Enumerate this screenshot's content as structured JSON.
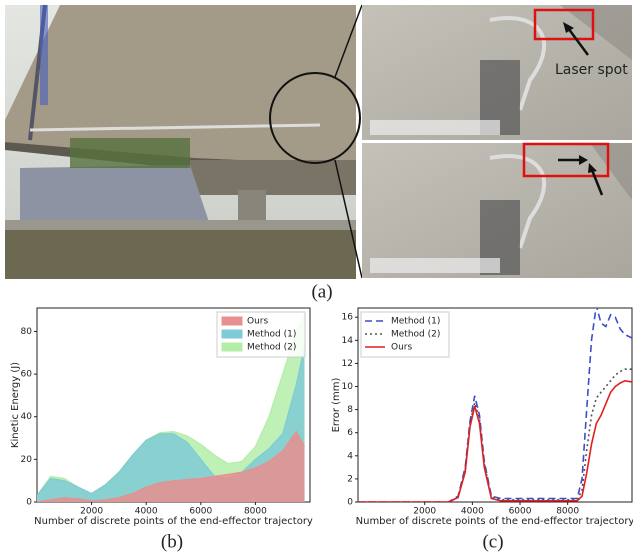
{
  "figure": {
    "panel_a_label": "(a)",
    "panel_b_label": "(b)",
    "panel_c_label": "(c)",
    "annotation": "Laser spot"
  },
  "chart_data": [
    {
      "type": "area",
      "xlabel": "Number of discrete points of the end-effector trajectory",
      "ylabel": "Kinetic Energy (J)",
      "x": [
        0,
        500,
        1000,
        1500,
        2000,
        2500,
        3000,
        3500,
        4000,
        4500,
        5000,
        5500,
        6000,
        6500,
        7000,
        7500,
        8000,
        8500,
        9000,
        9500,
        9800
      ],
      "series": [
        {
          "name": "Ours",
          "color": "#e88f8f",
          "values": [
            0,
            1,
            2,
            1.5,
            0.5,
            1,
            2,
            4,
            7,
            9,
            10,
            10.5,
            11,
            12,
            13,
            14,
            16,
            19,
            24,
            33,
            26
          ]
        },
        {
          "name": "Method (1)",
          "color": "#7fcbd6",
          "values": [
            3,
            11,
            10,
            7,
            4,
            8,
            14,
            22,
            29,
            32,
            32,
            28,
            20,
            12,
            11,
            14,
            20,
            25,
            32,
            55,
            73
          ]
        },
        {
          "name": "Method (2)",
          "color": "#b4eda8",
          "values": [
            3,
            12,
            11,
            7,
            4,
            8,
            14,
            22,
            29,
            32.5,
            33,
            31,
            27,
            22,
            18,
            19,
            26,
            40,
            60,
            80,
            88
          ]
        }
      ],
      "xlim": [
        0,
        10000
      ],
      "xticks": [
        2000,
        4000,
        6000,
        8000
      ],
      "ylim": [
        0,
        91
      ],
      "yticks": [
        0,
        20,
        40,
        60,
        80
      ],
      "legend": "upper right"
    },
    {
      "type": "line",
      "xlabel": "Number of discrete points of the end-effector trajectory",
      "ylabel": "Error (mm)",
      "x": [
        -800,
        3000,
        3400,
        3700,
        3900,
        4100,
        4300,
        4500,
        4800,
        5200,
        8400,
        8600,
        8800,
        9000,
        9200,
        9400,
        9600,
        9800,
        10000,
        10200,
        10400,
        10700
      ],
      "series": [
        {
          "name": "Method (1)",
          "color": "#3a4fc9",
          "dash": "dashed",
          "values": [
            0,
            0,
            0.5,
            3,
            7,
            9.2,
            7.5,
            3.5,
            0.5,
            0.3,
            0.3,
            2,
            8,
            14,
            17,
            15.5,
            15.2,
            16.2,
            16,
            15,
            14.5,
            14.2
          ]
        },
        {
          "name": "Method (2)",
          "color": "#555555",
          "dash": "dotted",
          "values": [
            0,
            0,
            0.4,
            2.8,
            6.8,
            8.6,
            7.2,
            3.3,
            0.4,
            0.2,
            0.2,
            1,
            4.5,
            7.5,
            9,
            9.5,
            10,
            10.5,
            11,
            11.3,
            11.5,
            11.5
          ]
        },
        {
          "name": "Ours",
          "color": "#e02020",
          "dash": "solid",
          "values": [
            0,
            0,
            0.4,
            2.6,
            6.5,
            8.3,
            6.8,
            3.0,
            0.3,
            0.1,
            0.1,
            0.5,
            2.5,
            5,
            6.8,
            7.5,
            8.5,
            9.5,
            10,
            10.3,
            10.5,
            10.4
          ]
        }
      ],
      "xlim": [
        -800,
        10700
      ],
      "xticks": [
        2000,
        4000,
        6000,
        8000
      ],
      "ylim": [
        0,
        16.8
      ],
      "yticks": [
        0,
        2,
        4,
        6,
        8,
        10,
        12,
        14,
        16
      ],
      "legend": "upper left"
    }
  ]
}
